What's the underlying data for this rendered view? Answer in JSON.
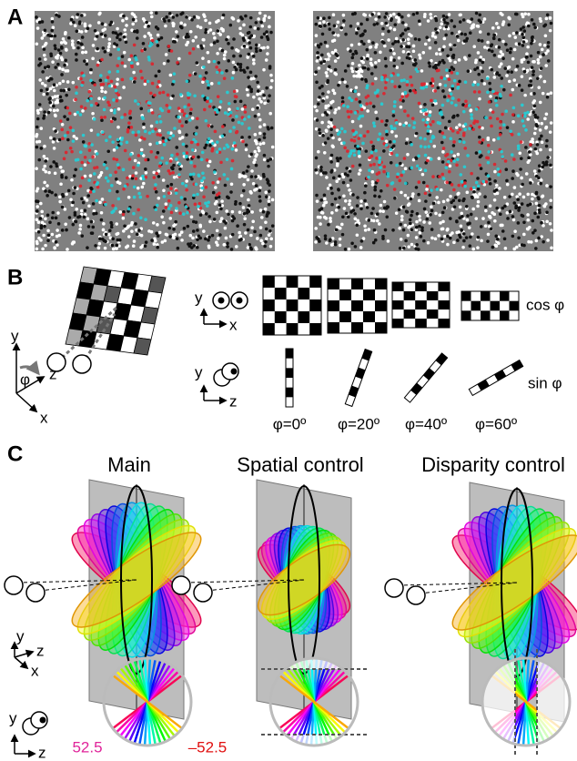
{
  "panel_a": {
    "label": "A"
  },
  "panel_b": {
    "label": "B",
    "axis_y": "y",
    "axis_x": "x",
    "axis_z": "z",
    "angle": "φ",
    "cos_label": "cos φ",
    "sin_label": "sin φ",
    "angles": [
      "φ=0º",
      "φ=20º",
      "φ=40º",
      "φ=60º"
    ]
  },
  "panel_c": {
    "label": "C",
    "titles": [
      "Main",
      "Spatial control",
      "Disparity control"
    ],
    "left_value": "52.5",
    "right_value": "–52.5"
  }
}
